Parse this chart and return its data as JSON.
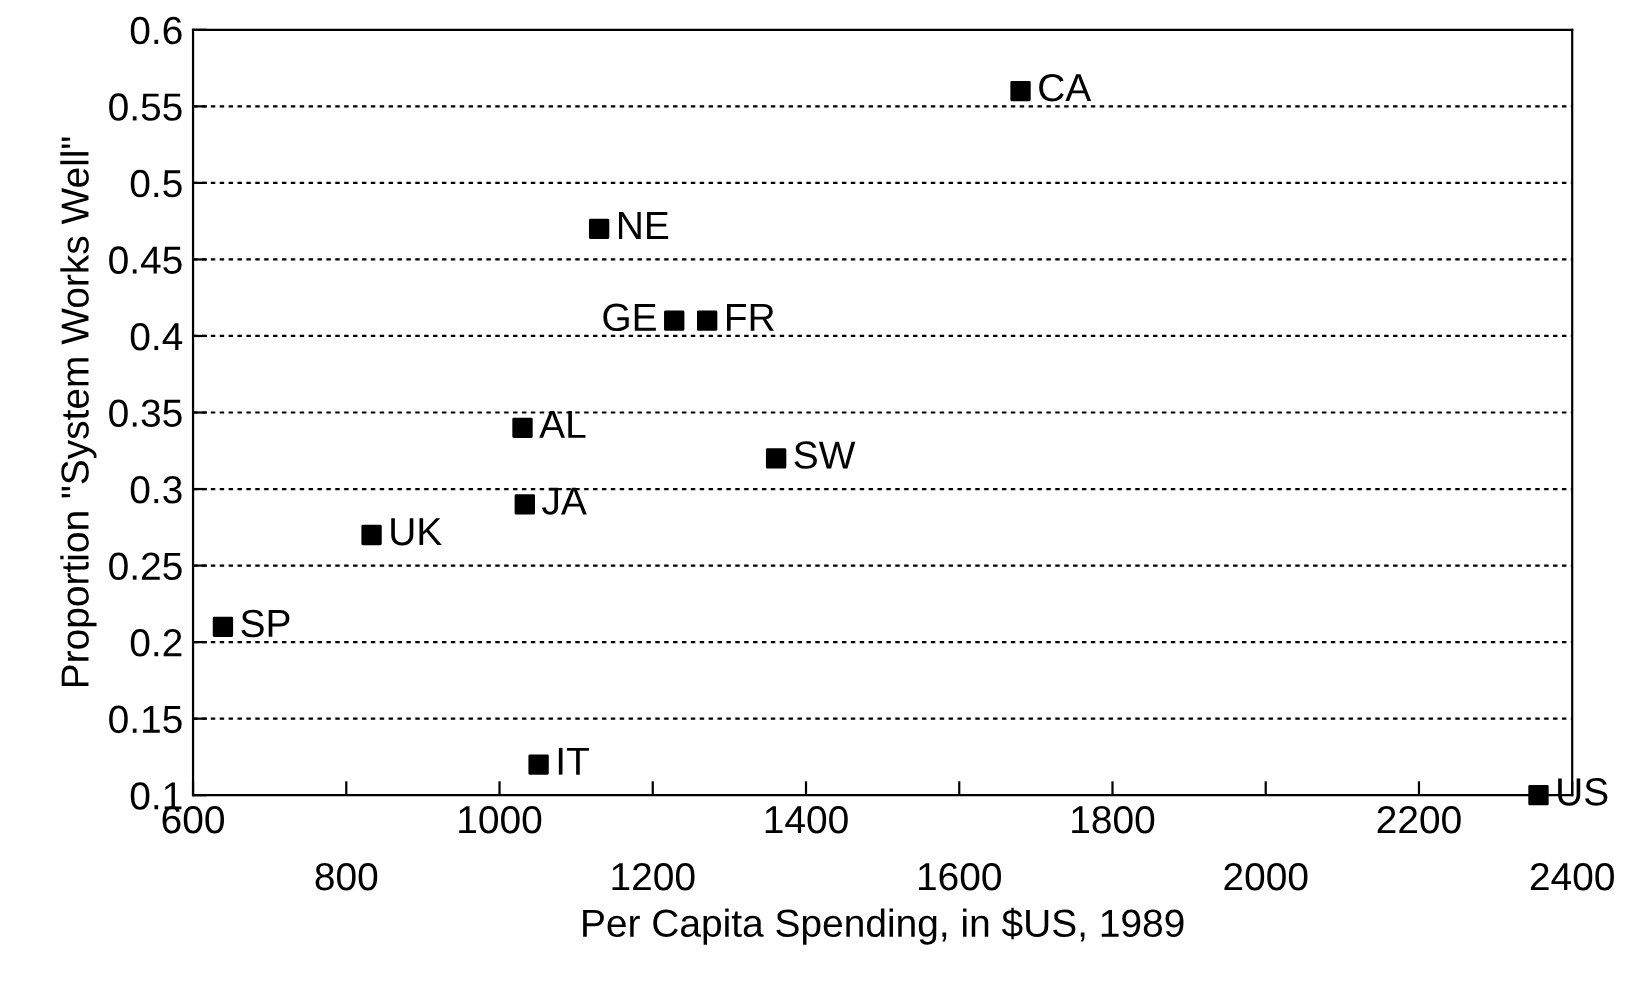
{
  "chart_data": {
    "type": "scatter",
    "xlabel": "Per Capita Spending, in $US, 1989",
    "ylabel": "Proportion \"System Works Well\"",
    "x": [
      1680,
      1130,
      1228,
      1271,
      1030,
      1361,
      1033,
      833,
      639,
      1051,
      2356
    ],
    "values": [
      0.56,
      0.47,
      0.41,
      0.41,
      0.34,
      0.32,
      0.29,
      0.27,
      0.21,
      0.12,
      0.1
    ],
    "color": "#000000",
    "marker": "square",
    "annotations": [
      {
        "text": "CA",
        "x": 1680,
        "y": 0.56
      },
      {
        "text": "NE",
        "x": 1130,
        "y": 0.47
      },
      {
        "text": "GE",
        "x": 1228,
        "y": 0.41
      },
      {
        "text": "FR",
        "x": 1271,
        "y": 0.41
      },
      {
        "text": "AL",
        "x": 1030,
        "y": 0.34
      },
      {
        "text": "SW",
        "x": 1361,
        "y": 0.32
      },
      {
        "text": "JA",
        "x": 1033,
        "y": 0.29
      },
      {
        "text": "UK",
        "x": 833,
        "y": 0.27
      },
      {
        "text": "SP",
        "x": 639,
        "y": 0.21
      },
      {
        "text": "IT",
        "x": 1051,
        "y": 0.12
      },
      {
        "text": "US",
        "x": 2356,
        "y": 0.1
      }
    ],
    "xlim": [
      600,
      2400
    ],
    "xticks": [
      600,
      {
        "value": 800,
        "label": null
      },
      1000,
      {
        "value": 1200,
        "label": null
      },
      1400,
      {
        "value": 1600,
        "label": null
      },
      1800,
      {
        "value": 2000,
        "label": null
      },
      2200,
      {
        "value": 2400,
        "label": null
      }
    ],
    "x2lim": [
      600,
      2400
    ],
    "x2ticks": [
      800,
      1200,
      1600,
      2000,
      2400
    ],
    "ylim": [
      0.1,
      0.6
    ],
    "yticks": [
      0.1,
      0.15,
      0.2,
      0.25,
      0.3,
      0.35,
      0.4,
      0.45,
      0.5,
      0.55,
      0.6
    ],
    "grid": "y"
  }
}
